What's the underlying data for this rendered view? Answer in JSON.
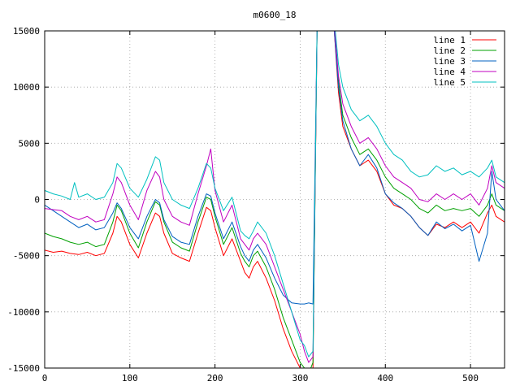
{
  "chart_data": {
    "type": "line",
    "title": "m0600_18",
    "xlabel": "",
    "ylabel": "",
    "xlim": [
      0,
      540
    ],
    "ylim": [
      -15000,
      15000
    ],
    "x_ticks": [
      0,
      100,
      200,
      300,
      400,
      500
    ],
    "y_ticks": [
      -15000,
      -10000,
      -5000,
      0,
      5000,
      10000,
      15000
    ],
    "grid": true,
    "legend_position": "top-right",
    "series": [
      {
        "name": "line 1",
        "color": "#ff0000",
        "x": [
          0,
          10,
          20,
          30,
          40,
          50,
          60,
          70,
          80,
          85,
          90,
          100,
          110,
          120,
          130,
          135,
          140,
          150,
          160,
          170,
          180,
          190,
          195,
          200,
          210,
          220,
          230,
          235,
          240,
          245,
          250,
          260,
          270,
          280,
          290,
          300,
          305,
          310,
          315,
          320,
          330,
          340,
          345,
          350,
          360,
          370,
          380,
          390,
          400,
          410,
          420,
          430,
          440,
          450,
          460,
          470,
          480,
          490,
          500,
          510,
          520,
          525,
          530,
          540
        ],
        "y": [
          -4500,
          -4700,
          -4600,
          -4800,
          -4900,
          -4700,
          -5000,
          -4800,
          -3000,
          -1500,
          -2000,
          -4000,
          -5200,
          -3000,
          -1200,
          -1500,
          -3000,
          -4800,
          -5200,
          -5500,
          -3000,
          -700,
          -1000,
          -2500,
          -5000,
          -3500,
          -5500,
          -6500,
          -7000,
          -6000,
          -5500,
          -7000,
          -9000,
          -11500,
          -13500,
          -15000,
          -15500,
          -16000,
          -15000,
          16000,
          16000,
          15000,
          9500,
          6500,
          4500,
          3000,
          3500,
          2500,
          500,
          -500,
          -800,
          -1500,
          -2500,
          -3200,
          -2200,
          -2500,
          -2000,
          -2500,
          -2000,
          -3000,
          -1200,
          -500,
          -1500,
          -2000
        ]
      },
      {
        "name": "line 2",
        "color": "#00a000",
        "x": [
          0,
          10,
          20,
          30,
          40,
          50,
          60,
          70,
          80,
          85,
          90,
          100,
          110,
          120,
          130,
          135,
          140,
          150,
          160,
          170,
          180,
          190,
          195,
          200,
          210,
          220,
          230,
          235,
          240,
          245,
          250,
          260,
          270,
          280,
          290,
          300,
          305,
          310,
          315,
          320,
          330,
          340,
          345,
          350,
          360,
          370,
          380,
          390,
          400,
          410,
          420,
          430,
          440,
          450,
          460,
          470,
          480,
          490,
          500,
          510,
          520,
          525,
          530,
          540
        ],
        "y": [
          -3000,
          -3300,
          -3500,
          -3800,
          -4000,
          -3800,
          -4200,
          -4000,
          -2000,
          -500,
          -1000,
          -3000,
          -4300,
          -2000,
          -200,
          -500,
          -2000,
          -3800,
          -4300,
          -4600,
          -2000,
          200,
          0,
          -1500,
          -4000,
          -2500,
          -4800,
          -5500,
          -6000,
          -5000,
          -4600,
          -6000,
          -8000,
          -10500,
          -12500,
          -14500,
          -15000,
          -15500,
          -14500,
          16000,
          16000,
          15500,
          10500,
          7500,
          5500,
          4000,
          4500,
          3500,
          2000,
          1000,
          500,
          0,
          -800,
          -1200,
          -500,
          -1000,
          -800,
          -1000,
          -800,
          -1500,
          -500,
          500,
          -500,
          -1000
        ]
      },
      {
        "name": "line 3",
        "color": "#0060c0",
        "x": [
          0,
          10,
          20,
          30,
          40,
          50,
          60,
          70,
          80,
          85,
          90,
          100,
          110,
          120,
          130,
          135,
          140,
          150,
          160,
          170,
          180,
          190,
          195,
          200,
          210,
          220,
          230,
          235,
          240,
          245,
          250,
          260,
          270,
          280,
          290,
          300,
          305,
          310,
          315,
          320,
          330,
          340,
          345,
          350,
          360,
          370,
          380,
          390,
          400,
          410,
          420,
          430,
          440,
          450,
          460,
          470,
          480,
          490,
          500,
          510,
          520,
          525,
          530,
          540
        ],
        "y": [
          -500,
          -1000,
          -1500,
          -2000,
          -2500,
          -2200,
          -2700,
          -2500,
          -1200,
          -300,
          -800,
          -2500,
          -3500,
          -1500,
          0,
          -300,
          -1800,
          -3300,
          -3800,
          -4000,
          -1500,
          500,
          300,
          -1200,
          -3500,
          -2000,
          -4200,
          -5000,
          -5500,
          -4500,
          -4000,
          -5200,
          -7000,
          -8500,
          -9200,
          -9300,
          -9300,
          -9200,
          -9300,
          16000,
          16000,
          15000,
          10000,
          7000,
          4500,
          3000,
          4000,
          2800,
          500,
          -300,
          -800,
          -1500,
          -2500,
          -3200,
          -2000,
          -2600,
          -2200,
          -2800,
          -2300,
          -5500,
          -3000,
          2500,
          0,
          -1000
        ]
      },
      {
        "name": "line 4",
        "color": "#c000c0",
        "x": [
          0,
          10,
          20,
          30,
          40,
          50,
          60,
          70,
          80,
          85,
          90,
          100,
          110,
          120,
          130,
          135,
          140,
          150,
          160,
          170,
          180,
          190,
          195,
          200,
          210,
          220,
          230,
          235,
          240,
          245,
          250,
          260,
          270,
          280,
          290,
          300,
          305,
          310,
          315,
          320,
          330,
          340,
          345,
          350,
          360,
          370,
          380,
          390,
          400,
          410,
          420,
          430,
          440,
          450,
          460,
          470,
          480,
          490,
          500,
          510,
          520,
          525,
          530,
          540
        ],
        "y": [
          -800,
          -900,
          -1000,
          -1500,
          -1800,
          -1500,
          -2000,
          -1800,
          500,
          2000,
          1500,
          -500,
          -1800,
          800,
          2500,
          2000,
          0,
          -1500,
          -2000,
          -2300,
          500,
          3000,
          4500,
          800,
          -2000,
          -500,
          -3500,
          -4000,
          -4500,
          -3500,
          -3000,
          -4000,
          -6000,
          -8000,
          -10000,
          -12000,
          -13500,
          -14500,
          -14000,
          16000,
          16000,
          15500,
          11000,
          8500,
          6500,
          5000,
          5500,
          4500,
          3000,
          2000,
          1500,
          1000,
          0,
          -200,
          500,
          0,
          500,
          0,
          500,
          -500,
          1000,
          3000,
          1500,
          1000
        ]
      },
      {
        "name": "line 5",
        "color": "#00c0c0",
        "x": [
          0,
          10,
          20,
          30,
          35,
          40,
          50,
          60,
          70,
          80,
          85,
          90,
          100,
          110,
          120,
          130,
          135,
          140,
          150,
          160,
          170,
          180,
          190,
          195,
          200,
          210,
          220,
          230,
          235,
          240,
          245,
          250,
          260,
          270,
          280,
          290,
          300,
          305,
          310,
          315,
          320,
          330,
          340,
          345,
          350,
          360,
          370,
          380,
          390,
          400,
          410,
          420,
          430,
          440,
          450,
          460,
          470,
          480,
          490,
          500,
          510,
          520,
          525,
          530,
          540
        ],
        "y": [
          800,
          500,
          300,
          0,
          1500,
          200,
          500,
          0,
          200,
          1500,
          3200,
          2800,
          1000,
          200,
          1800,
          3800,
          3500,
          1500,
          0,
          -500,
          -800,
          1000,
          3200,
          2800,
          1000,
          -1000,
          200,
          -2800,
          -3200,
          -3500,
          -2800,
          -2000,
          -3000,
          -5000,
          -7500,
          -10000,
          -12500,
          -13000,
          -14000,
          -13500,
          16000,
          16000,
          16000,
          12000,
          10000,
          8000,
          7000,
          7500,
          6500,
          5000,
          4000,
          3500,
          2500,
          2000,
          2200,
          3000,
          2500,
          2800,
          2200,
          2500,
          2000,
          2800,
          3500,
          2000,
          1500
        ]
      }
    ]
  }
}
